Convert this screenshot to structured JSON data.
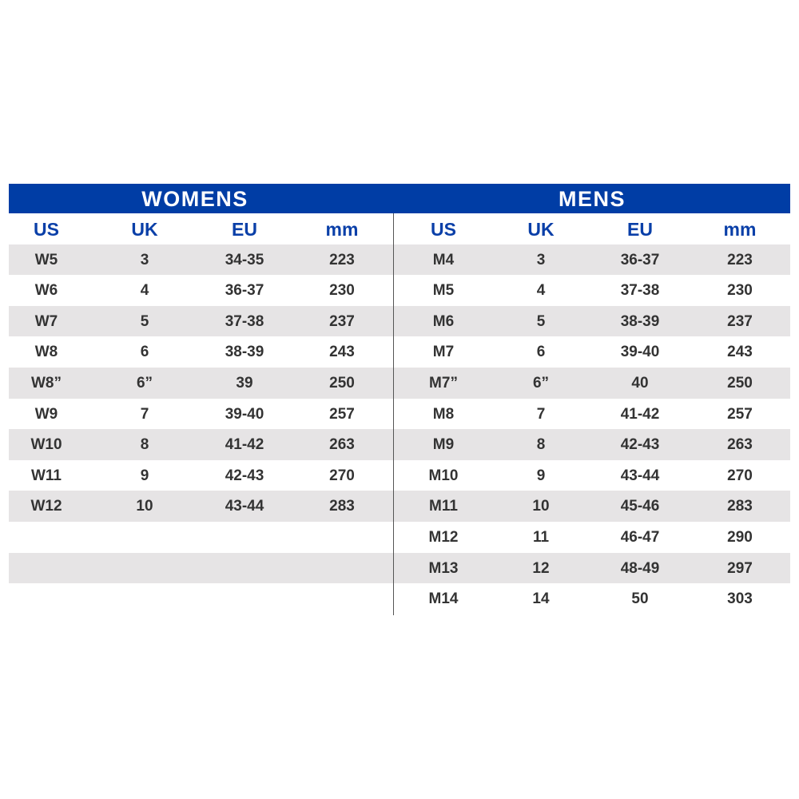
{
  "colors": {
    "header_blue": "#003da5",
    "row_grey": "#e6e4e5",
    "text": "#333333"
  },
  "womens": {
    "title": "WOMENS",
    "columns": [
      "US",
      "UK",
      "EU",
      "mm"
    ],
    "rows": [
      [
        "W5",
        "3",
        "34-35",
        "223"
      ],
      [
        "W6",
        "4",
        "36-37",
        "230"
      ],
      [
        "W7",
        "5",
        "37-38",
        "237"
      ],
      [
        "W8",
        "6",
        "38-39",
        "243"
      ],
      [
        "W8”",
        "6”",
        "39",
        "250"
      ],
      [
        "W9",
        "7",
        "39-40",
        "257"
      ],
      [
        "W10",
        "8",
        "41-42",
        "263"
      ],
      [
        "W11",
        "9",
        "42-43",
        "270"
      ],
      [
        "W12",
        "10",
        "43-44",
        "283"
      ]
    ]
  },
  "mens": {
    "title": "MENS",
    "columns": [
      "US",
      "UK",
      "EU",
      "mm"
    ],
    "rows": [
      [
        "M4",
        "3",
        "36-37",
        "223"
      ],
      [
        "M5",
        "4",
        "37-38",
        "230"
      ],
      [
        "M6",
        "5",
        "38-39",
        "237"
      ],
      [
        "M7",
        "6",
        "39-40",
        "243"
      ],
      [
        "M7”",
        "6”",
        "40",
        "250"
      ],
      [
        "M8",
        "7",
        "41-42",
        "257"
      ],
      [
        "M9",
        "8",
        "42-43",
        "263"
      ],
      [
        "M10",
        "9",
        "43-44",
        "270"
      ],
      [
        "M11",
        "10",
        "45-46",
        "283"
      ],
      [
        "M12",
        "11",
        "46-47",
        "290"
      ],
      [
        "M13",
        "12",
        "48-49",
        "297"
      ],
      [
        "M14",
        "14",
        "50",
        "303"
      ]
    ]
  }
}
